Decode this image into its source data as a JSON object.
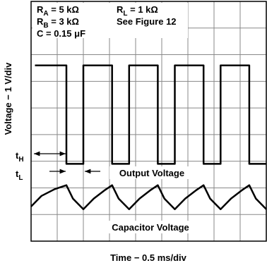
{
  "chart_data": {
    "type": "line",
    "annotations": [
      {
        "base": "R",
        "sub": "A",
        "text": " = 5 kΩ"
      },
      {
        "base": "R",
        "sub": "B",
        "text": " = 3 kΩ"
      },
      {
        "text": "C = 0.15 μF"
      },
      {
        "base": "R",
        "sub": "L",
        "text": " = 1 kΩ"
      },
      {
        "text": "See Figure 12"
      },
      {
        "base": "t",
        "sub": "H"
      },
      {
        "base": "t",
        "sub": "L"
      }
    ],
    "x_label": "Time − 0.5 ms/div",
    "y_label": "Voltage − 1 V/div",
    "xlim": [
      0,
      9
    ],
    "ylim": [
      0,
      9
    ],
    "xticks": [
      0,
      1,
      2,
      3,
      4,
      5,
      6,
      7,
      8,
      9
    ],
    "yticks": [
      0,
      1,
      2,
      3,
      4,
      5,
      6,
      7,
      8,
      9
    ],
    "grid": true,
    "series": [
      {
        "name": "Output Voltage",
        "color": "#000000",
        "x": [
          0.15,
          1.35,
          1.35,
          2.0,
          2.0,
          3.1,
          3.1,
          3.75,
          3.75,
          4.85,
          4.85,
          5.5,
          5.5,
          6.6,
          6.6,
          7.25,
          7.25,
          8.35,
          8.35,
          9.0
        ],
        "values": [
          6.6,
          6.6,
          2.9,
          2.9,
          6.6,
          6.6,
          2.9,
          2.9,
          6.6,
          6.6,
          2.9,
          2.9,
          6.6,
          6.6,
          2.9,
          2.9,
          6.6,
          6.6,
          2.9,
          2.9
        ]
      },
      {
        "name": "Capacitor Voltage",
        "color": "#000000",
        "x": [
          0.0,
          0.4,
          0.9,
          1.35,
          1.6,
          2.0,
          2.4,
          2.8,
          3.1,
          3.35,
          3.75,
          4.15,
          4.55,
          4.85,
          5.1,
          5.5,
          5.9,
          6.3,
          6.6,
          6.85,
          7.25,
          7.65,
          8.05,
          8.35,
          8.6,
          9.0
        ],
        "values": [
          1.3,
          1.7,
          1.95,
          2.1,
          1.6,
          1.2,
          1.6,
          1.9,
          2.1,
          1.6,
          1.2,
          1.6,
          1.9,
          2.1,
          1.6,
          1.2,
          1.6,
          1.9,
          2.1,
          1.6,
          1.2,
          1.6,
          1.9,
          2.1,
          1.6,
          1.2
        ]
      }
    ]
  }
}
